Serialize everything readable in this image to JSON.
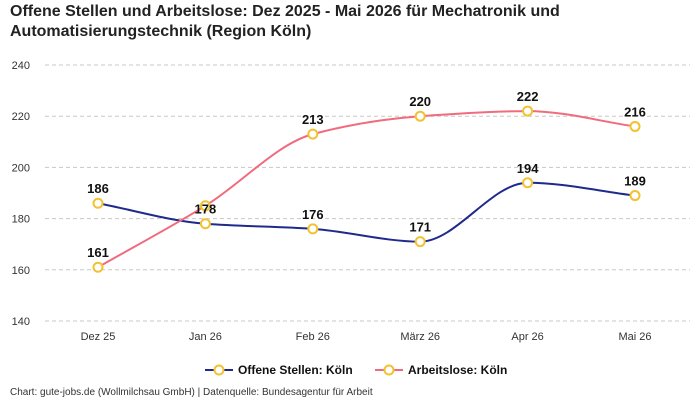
{
  "chart_data": {
    "type": "line",
    "title": "Offene Stellen und Arbeitslose: Dez 2025 - Mai 2026 für Mechatronik und Automatisierungstechnik (Region Köln)",
    "categories": [
      "Dez 25",
      "Jan 26",
      "Feb 26",
      "März 26",
      "Apr 26",
      "Mai 26"
    ],
    "ylim": [
      140,
      240
    ],
    "yticks": [
      140,
      160,
      180,
      200,
      220,
      240
    ],
    "grid": true,
    "legend_position": "bottom",
    "series": [
      {
        "name": "Offene Stellen: Köln",
        "color": "#1f2a8c",
        "marker_color": "#f2c230",
        "values": [
          186,
          178,
          176,
          171,
          194,
          189
        ]
      },
      {
        "name": "Arbeitslose: Köln",
        "color": "#f06b7d",
        "marker_color": "#f2c230",
        "values": [
          161,
          185,
          213,
          220,
          222,
          216
        ]
      }
    ],
    "data_labels": [
      [
        186,
        178,
        176,
        171,
        194,
        189
      ],
      [
        161,
        null,
        213,
        220,
        222,
        216
      ]
    ]
  },
  "footer": "Chart: gute-jobs.de (Wollmilchsau GmbH) | Datenquelle: Bundesagentur für Arbeit"
}
